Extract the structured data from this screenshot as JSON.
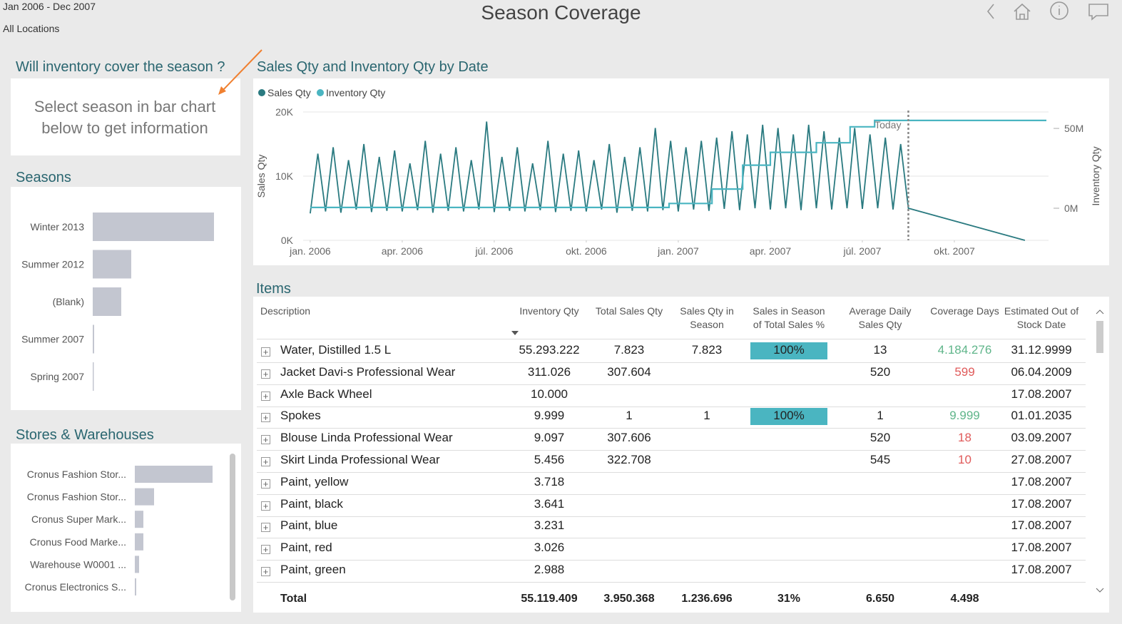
{
  "header": {
    "period": "Jan 2006 - Dec 2007",
    "location": "All Locations",
    "title": "Season Coverage"
  },
  "info_card": {
    "title": "Will inventory cover the season ?",
    "message": "Select season in bar chart below to get information"
  },
  "seasons_chart": {
    "type": "bar",
    "title": "Seasons",
    "categories": [
      "Winter 2013",
      "Summer 2012",
      "(Blank)",
      "Summer 2007",
      "Spring 2007"
    ],
    "values": [
      170,
      54,
      40,
      2,
      1
    ],
    "color": "#c3c6d0"
  },
  "stores_chart": {
    "type": "bar",
    "title": "Stores & Warehouses",
    "categories": [
      "Cronus Fashion Stor...",
      "Cronus Fashion Stor...",
      "Cronus Super Mark...",
      "Cronus Food Marke...",
      "Warehouse W0001 ...",
      "Cronus Electronics S..."
    ],
    "values": [
      109,
      27,
      12,
      12,
      6,
      2
    ],
    "color": "#c3c6d0"
  },
  "line_chart": {
    "type": "line",
    "title": "Sales Qty and Inventory Qty by Date",
    "y_label": "Sales Qty",
    "y2_label": "Inventory Qty",
    "xlim": [
      -0.23,
      24.07
    ],
    "xticks": [
      {
        "value": 0,
        "label": "jan. 2006"
      },
      {
        "value": 3,
        "label": "apr. 2006"
      },
      {
        "value": 6,
        "label": "júl. 2006"
      },
      {
        "value": 9,
        "label": "okt. 2006"
      },
      {
        "value": 12,
        "label": "jan. 2007"
      },
      {
        "value": 15,
        "label": "apr. 2007"
      },
      {
        "value": 18,
        "label": "júl. 2007"
      },
      {
        "value": 21,
        "label": "okt. 2007"
      }
    ],
    "ylim": [
      0,
      20000
    ],
    "yticks": [
      {
        "value": 0,
        "label": "0K"
      },
      {
        "value": 10000,
        "label": "10K"
      },
      {
        "value": 20000,
        "label": "20K"
      }
    ],
    "y2lim": [
      -20.1,
      60.3
    ],
    "y2ticks": [
      {
        "value": 0,
        "label": "0M"
      },
      {
        "value": 50,
        "label": "50M"
      }
    ],
    "annotation": {
      "label": "Today",
      "x": 19.5
    },
    "series": [
      {
        "name": "Sales Qty",
        "color": "#2a7a80",
        "x": [
          0,
          0.25,
          0.5,
          0.75,
          1,
          1.25,
          1.5,
          1.75,
          2,
          2.25,
          2.5,
          2.75,
          3,
          3.25,
          3.5,
          3.75,
          4,
          4.25,
          4.5,
          4.75,
          5,
          5.25,
          5.5,
          5.75,
          6,
          6.25,
          6.5,
          6.75,
          7,
          7.25,
          7.5,
          7.75,
          8,
          8.25,
          8.5,
          8.75,
          9,
          9.25,
          9.5,
          9.75,
          10,
          10.25,
          10.5,
          10.75,
          11,
          11.25,
          11.5,
          11.75,
          12,
          12.25,
          12.5,
          12.75,
          13,
          13.25,
          13.5,
          13.75,
          14,
          14.25,
          14.5,
          14.75,
          15,
          15.25,
          15.5,
          15.75,
          16,
          16.25,
          16.5,
          16.75,
          17,
          17.25,
          17.5,
          17.75,
          18,
          18.25,
          18.5,
          18.75,
          19,
          19.25,
          19.5,
          23.3
        ],
        "values": [
          4200,
          13500,
          4500,
          14500,
          4300,
          12500,
          4800,
          15000,
          4400,
          13000,
          4600,
          14000,
          4500,
          12000,
          4700,
          15500,
          4300,
          13500,
          4600,
          14500,
          4500,
          12500,
          4800,
          18500,
          4400,
          13000,
          4600,
          14500,
          4500,
          12000,
          4700,
          15500,
          4400,
          13500,
          4600,
          14000,
          4500,
          12500,
          4800,
          15000,
          4300,
          13000,
          4600,
          14500,
          4500,
          17500,
          4700,
          15500,
          4500,
          14500,
          4800,
          15500,
          4600,
          16000,
          4900,
          17000,
          4700,
          16500,
          5000,
          18000,
          4800,
          17500,
          5000,
          16500,
          4700,
          18000,
          5000,
          17000,
          4800,
          16000,
          5000,
          17500,
          4900,
          16500,
          5000,
          16000,
          4800,
          15000,
          5000,
          0
        ]
      },
      {
        "name": "Inventory Qty",
        "color": "#4ab5c1",
        "axis": "y2",
        "x": [
          0,
          11.7,
          11.7,
          13.1,
          13.1,
          14.1,
          14.1,
          15,
          15,
          16.5,
          16.5,
          17.6,
          17.6,
          18.4,
          18.4,
          24
        ],
        "values": [
          0.5,
          0.5,
          3,
          3,
          12,
          12,
          27,
          27,
          35,
          35,
          41,
          41,
          51,
          51,
          55,
          55
        ]
      }
    ]
  },
  "items": {
    "title": "Items",
    "columns": [
      "Description",
      "Inventory Qty",
      "Total Sales Qty",
      "Sales Qty in Season",
      "Sales in Season of Total Sales %",
      "Average Daily Sales Qty",
      "Coverage Days",
      "Estimated Out of Stock Date"
    ],
    "rows": [
      [
        "Water, Distilled 1.5 L",
        "55.293.222",
        "7.823",
        "7.823",
        "100%",
        "13",
        "4.184.276",
        "31.12.9999"
      ],
      [
        "Jacket Davi-s Professional Wear",
        "311.026",
        "307.604",
        null,
        null,
        "520",
        "599",
        "06.04.2009"
      ],
      [
        "Axle Back Wheel",
        "10.000",
        null,
        null,
        null,
        null,
        null,
        "17.08.2007"
      ],
      [
        "Spokes",
        "9.999",
        "1",
        "1",
        "100%",
        "1",
        "9.999",
        "01.01.2035"
      ],
      [
        "Blouse Linda Professional Wear",
        "9.097",
        "307.606",
        null,
        null,
        "520",
        "18",
        "03.09.2007"
      ],
      [
        "Skirt Linda Professional Wear",
        "5.456",
        "322.708",
        null,
        null,
        "545",
        "10",
        "27.08.2007"
      ],
      [
        "Paint, yellow",
        "3.718",
        null,
        null,
        null,
        null,
        null,
        "17.08.2007"
      ],
      [
        "Paint, black",
        "3.641",
        null,
        null,
        null,
        null,
        null,
        "17.08.2007"
      ],
      [
        "Paint, blue",
        "3.231",
        null,
        null,
        null,
        null,
        null,
        "17.08.2007"
      ],
      [
        "Paint, red",
        "3.026",
        null,
        null,
        null,
        null,
        null,
        "17.08.2007"
      ],
      [
        "Paint, green",
        "2.988",
        null,
        null,
        null,
        null,
        null,
        "17.08.2007"
      ]
    ],
    "coverage_colors": [
      "#5fb58a",
      "#e05a5a",
      null,
      "#5fb58a",
      "#e05a5a",
      "#e05a5a",
      null,
      null,
      null,
      null,
      null
    ],
    "bar_color": "#4ab5c1",
    "total": [
      "Total",
      "55.119.409",
      "3.950.368",
      "1.236.696",
      "31%",
      "6.650",
      "4.498",
      null
    ]
  }
}
